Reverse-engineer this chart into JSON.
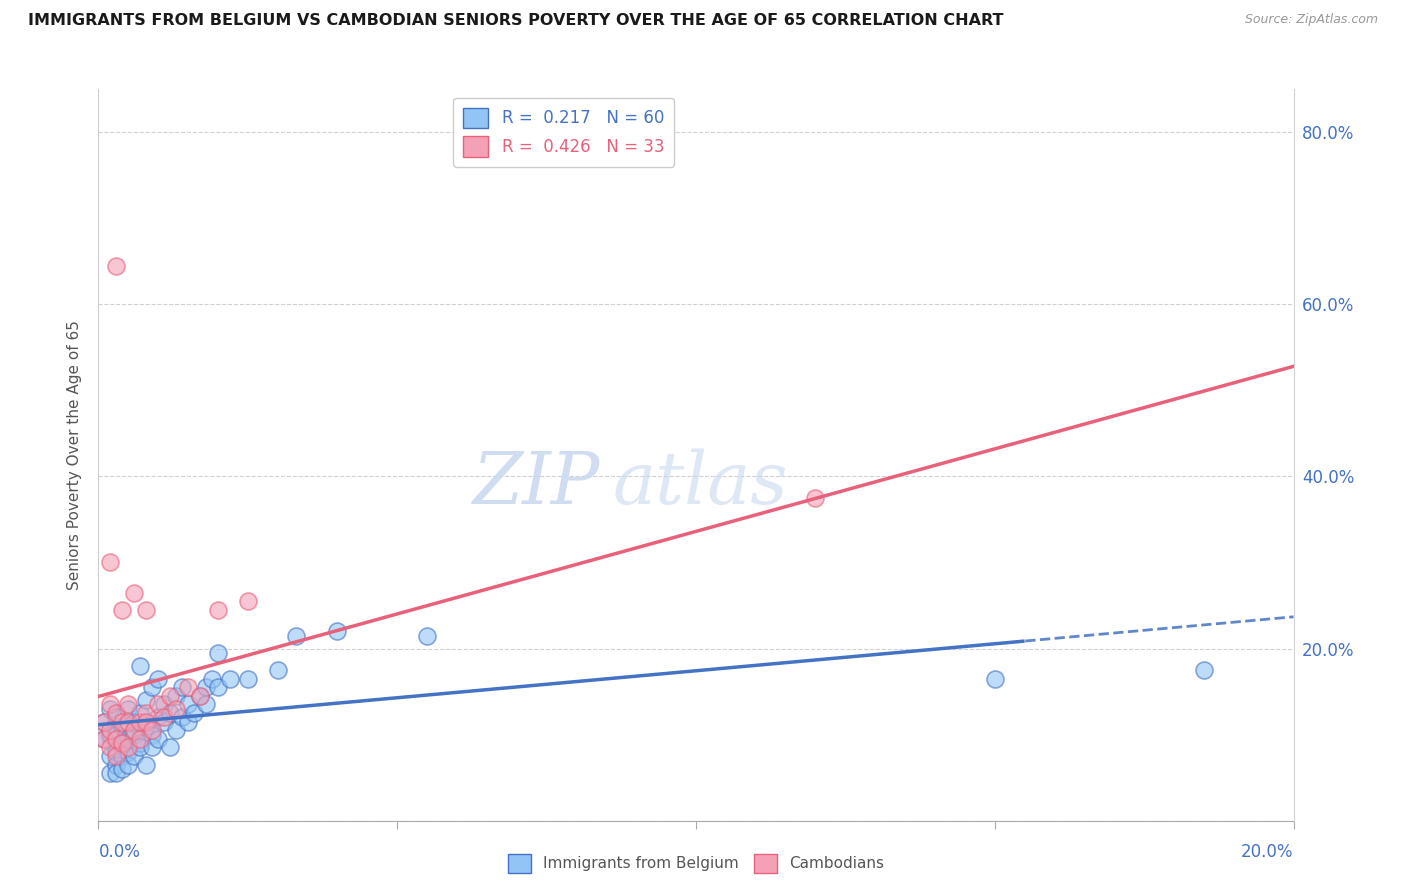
{
  "title": "IMMIGRANTS FROM BELGIUM VS CAMBODIAN SENIORS POVERTY OVER THE AGE OF 65 CORRELATION CHART",
  "source": "Source: ZipAtlas.com",
  "ylabel": "Seniors Poverty Over the Age of 65",
  "xlim": [
    0,
    0.2
  ],
  "ylim": [
    0,
    0.85
  ],
  "yticks": [
    0.0,
    0.2,
    0.4,
    0.6,
    0.8
  ],
  "xticks": [
    0.0,
    0.05,
    0.1,
    0.15,
    0.2
  ],
  "color_blue": "#92c5f5",
  "color_pink": "#f4a0b5",
  "trend_color_blue": "#4472c4",
  "trend_color_pink": "#e8607a",
  "tick_color": "#4472c4",
  "watermark_zip": "ZIP",
  "watermark_atlas": "atlas",
  "blue_points": [
    [
      0.001,
      0.115
    ],
    [
      0.001,
      0.095
    ],
    [
      0.002,
      0.1
    ],
    [
      0.002,
      0.075
    ],
    [
      0.002,
      0.13
    ],
    [
      0.002,
      0.055
    ],
    [
      0.003,
      0.08
    ],
    [
      0.003,
      0.065
    ],
    [
      0.003,
      0.1
    ],
    [
      0.003,
      0.12
    ],
    [
      0.003,
      0.055
    ],
    [
      0.004,
      0.09
    ],
    [
      0.004,
      0.075
    ],
    [
      0.004,
      0.11
    ],
    [
      0.004,
      0.06
    ],
    [
      0.005,
      0.08
    ],
    [
      0.005,
      0.13
    ],
    [
      0.005,
      0.065
    ],
    [
      0.005,
      0.095
    ],
    [
      0.006,
      0.1
    ],
    [
      0.006,
      0.075
    ],
    [
      0.006,
      0.115
    ],
    [
      0.007,
      0.09
    ],
    [
      0.007,
      0.125
    ],
    [
      0.007,
      0.085
    ],
    [
      0.007,
      0.18
    ],
    [
      0.008,
      0.14
    ],
    [
      0.008,
      0.11
    ],
    [
      0.008,
      0.065
    ],
    [
      0.009,
      0.1
    ],
    [
      0.009,
      0.155
    ],
    [
      0.009,
      0.085
    ],
    [
      0.01,
      0.12
    ],
    [
      0.01,
      0.095
    ],
    [
      0.01,
      0.165
    ],
    [
      0.011,
      0.115
    ],
    [
      0.011,
      0.135
    ],
    [
      0.012,
      0.125
    ],
    [
      0.012,
      0.085
    ],
    [
      0.013,
      0.145
    ],
    [
      0.013,
      0.105
    ],
    [
      0.014,
      0.155
    ],
    [
      0.014,
      0.12
    ],
    [
      0.015,
      0.135
    ],
    [
      0.015,
      0.115
    ],
    [
      0.016,
      0.125
    ],
    [
      0.017,
      0.145
    ],
    [
      0.018,
      0.155
    ],
    [
      0.018,
      0.135
    ],
    [
      0.019,
      0.165
    ],
    [
      0.02,
      0.155
    ],
    [
      0.02,
      0.195
    ],
    [
      0.022,
      0.165
    ],
    [
      0.025,
      0.165
    ],
    [
      0.03,
      0.175
    ],
    [
      0.033,
      0.215
    ],
    [
      0.04,
      0.22
    ],
    [
      0.055,
      0.215
    ],
    [
      0.15,
      0.165
    ],
    [
      0.185,
      0.175
    ]
  ],
  "pink_points": [
    [
      0.001,
      0.095
    ],
    [
      0.001,
      0.115
    ],
    [
      0.002,
      0.085
    ],
    [
      0.002,
      0.105
    ],
    [
      0.002,
      0.135
    ],
    [
      0.002,
      0.3
    ],
    [
      0.003,
      0.095
    ],
    [
      0.003,
      0.075
    ],
    [
      0.003,
      0.125
    ],
    [
      0.003,
      0.645
    ],
    [
      0.004,
      0.09
    ],
    [
      0.004,
      0.115
    ],
    [
      0.004,
      0.245
    ],
    [
      0.005,
      0.085
    ],
    [
      0.005,
      0.115
    ],
    [
      0.005,
      0.135
    ],
    [
      0.006,
      0.105
    ],
    [
      0.006,
      0.265
    ],
    [
      0.007,
      0.115
    ],
    [
      0.007,
      0.095
    ],
    [
      0.008,
      0.125
    ],
    [
      0.008,
      0.115
    ],
    [
      0.008,
      0.245
    ],
    [
      0.009,
      0.105
    ],
    [
      0.01,
      0.135
    ],
    [
      0.011,
      0.12
    ],
    [
      0.012,
      0.145
    ],
    [
      0.013,
      0.13
    ],
    [
      0.015,
      0.155
    ],
    [
      0.017,
      0.145
    ],
    [
      0.02,
      0.245
    ],
    [
      0.025,
      0.255
    ],
    [
      0.12,
      0.375
    ]
  ],
  "blue_trend_solid_end": 0.155,
  "blue_trend_dashed_start": 0.155,
  "pink_trend_intercept": 0.09,
  "pink_trend_slope": 2.55
}
